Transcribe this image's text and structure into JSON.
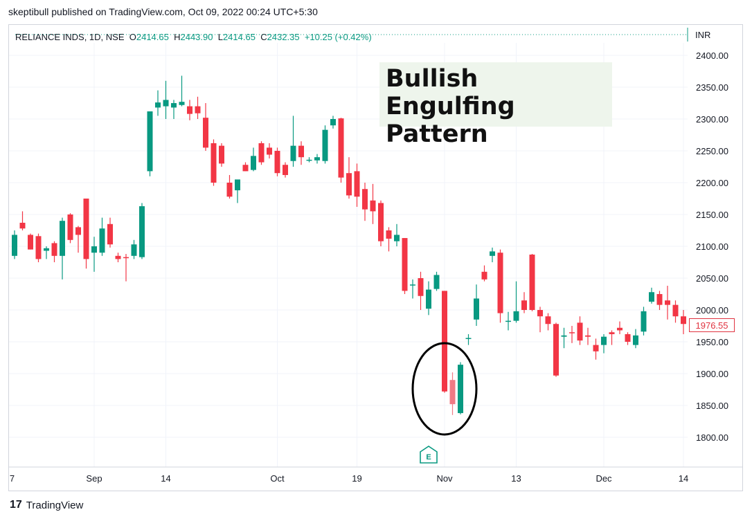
{
  "publisher": "skeptibull published on TradingView.com, Oct 09, 2022 00:24 UTC+5:30",
  "legend": {
    "symbol": "RELIANCE INDS, 1D, NSE",
    "o_label": "O",
    "o": "2414.65",
    "h_label": "H",
    "h": "2443.90",
    "l_label": "L",
    "l": "2414.65",
    "c_label": "C",
    "c": "2432.35",
    "change": "+10.25 (+0.42%)"
  },
  "currency": "INR",
  "annotation_title_line1": "Bullish Engulfing",
  "annotation_title_line2": "Pattern",
  "last_price_tag": "1976.55",
  "earnings_marker": "E",
  "brand": {
    "logo": "17",
    "name": "TradingView"
  },
  "colors": {
    "up": "#089981",
    "down": "#f23645",
    "highlight_down": "#f07a85"
  },
  "chart_data": {
    "type": "candlestick",
    "title": "RELIANCE INDS, 1D, NSE",
    "ylabel": "INR",
    "ylim": [
      1775,
      2410
    ],
    "yticks": [
      "2400.00",
      "2350.00",
      "2300.00",
      "2250.00",
      "2200.00",
      "2150.00",
      "2100.00",
      "2050.00",
      "2000.00",
      "1950.00",
      "1900.00",
      "1850.00",
      "1800.00"
    ],
    "xticks": [
      {
        "label": "7",
        "index": -0.3
      },
      {
        "label": "Sep",
        "index": 10
      },
      {
        "label": "14",
        "index": 19
      },
      {
        "label": "Oct",
        "index": 33
      },
      {
        "label": "19",
        "index": 43
      },
      {
        "label": "Nov",
        "index": 54
      },
      {
        "label": "13",
        "index": 63
      },
      {
        "label": "Dec",
        "index": 74
      },
      {
        "label": "14",
        "index": 84
      }
    ],
    "candles": [
      {
        "o": 2085,
        "h": 2125,
        "l": 2080,
        "c": 2118
      },
      {
        "o": 2137,
        "h": 2155,
        "l": 2125,
        "c": 2128
      },
      {
        "o": 2118,
        "h": 2120,
        "l": 2095,
        "c": 2095
      },
      {
        "o": 2116,
        "h": 2120,
        "l": 2075,
        "c": 2080
      },
      {
        "o": 2093,
        "h": 2100,
        "l": 2080,
        "c": 2097
      },
      {
        "o": 2105,
        "h": 2108,
        "l": 2075,
        "c": 2085
      },
      {
        "o": 2085,
        "h": 2145,
        "l": 2048,
        "c": 2140
      },
      {
        "o": 2150,
        "h": 2152,
        "l": 2105,
        "c": 2110
      },
      {
        "o": 2130,
        "h": 2132,
        "l": 2090,
        "c": 2118
      },
      {
        "o": 2175,
        "h": 2175,
        "l": 2065,
        "c": 2080
      },
      {
        "o": 2090,
        "h": 2115,
        "l": 2060,
        "c": 2100
      },
      {
        "o": 2090,
        "h": 2145,
        "l": 2085,
        "c": 2128
      },
      {
        "o": 2135,
        "h": 2145,
        "l": 2098,
        "c": 2103
      },
      {
        "o": 2085,
        "h": 2090,
        "l": 2075,
        "c": 2080
      },
      {
        "o": 2083,
        "h": 2088,
        "l": 2045,
        "c": 2082
      },
      {
        "o": 2085,
        "h": 2110,
        "l": 2080,
        "c": 2103
      },
      {
        "o": 2083,
        "h": 2168,
        "l": 2080,
        "c": 2163
      },
      {
        "o": 2218,
        "h": 2310,
        "l": 2210,
        "c": 2312
      },
      {
        "o": 2318,
        "h": 2345,
        "l": 2305,
        "c": 2326
      },
      {
        "o": 2320,
        "h": 2360,
        "l": 2300,
        "c": 2330
      },
      {
        "o": 2318,
        "h": 2330,
        "l": 2300,
        "c": 2325
      },
      {
        "o": 2322,
        "h": 2368,
        "l": 2320,
        "c": 2327
      },
      {
        "o": 2320,
        "h": 2330,
        "l": 2298,
        "c": 2308
      },
      {
        "o": 2320,
        "h": 2335,
        "l": 2300,
        "c": 2309
      },
      {
        "o": 2302,
        "h": 2325,
        "l": 2250,
        "c": 2255
      },
      {
        "o": 2262,
        "h": 2268,
        "l": 2195,
        "c": 2200
      },
      {
        "o": 2258,
        "h": 2262,
        "l": 2225,
        "c": 2230
      },
      {
        "o": 2200,
        "h": 2212,
        "l": 2175,
        "c": 2178
      },
      {
        "o": 2188,
        "h": 2200,
        "l": 2168,
        "c": 2205
      },
      {
        "o": 2228,
        "h": 2232,
        "l": 2218,
        "c": 2218
      },
      {
        "o": 2220,
        "h": 2255,
        "l": 2218,
        "c": 2242
      },
      {
        "o": 2262,
        "h": 2265,
        "l": 2228,
        "c": 2232
      },
      {
        "o": 2255,
        "h": 2262,
        "l": 2238,
        "c": 2244
      },
      {
        "o": 2250,
        "h": 2255,
        "l": 2210,
        "c": 2215
      },
      {
        "o": 2228,
        "h": 2232,
        "l": 2208,
        "c": 2212
      },
      {
        "o": 2234,
        "h": 2305,
        "l": 2225,
        "c": 2258
      },
      {
        "o": 2258,
        "h": 2265,
        "l": 2228,
        "c": 2240
      },
      {
        "o": 2236,
        "h": 2240,
        "l": 2232,
        "c": 2236
      },
      {
        "o": 2235,
        "h": 2245,
        "l": 2230,
        "c": 2240
      },
      {
        "o": 2234,
        "h": 2290,
        "l": 2230,
        "c": 2283
      },
      {
        "o": 2290,
        "h": 2305,
        "l": 2285,
        "c": 2300
      },
      {
        "o": 2301,
        "h": 2302,
        "l": 2200,
        "c": 2208
      },
      {
        "o": 2215,
        "h": 2240,
        "l": 2175,
        "c": 2180
      },
      {
        "o": 2218,
        "h": 2230,
        "l": 2162,
        "c": 2178
      },
      {
        "o": 2190,
        "h": 2200,
        "l": 2140,
        "c": 2158
      },
      {
        "o": 2172,
        "h": 2198,
        "l": 2135,
        "c": 2155
      },
      {
        "o": 2168,
        "h": 2172,
        "l": 2100,
        "c": 2108
      },
      {
        "o": 2125,
        "h": 2130,
        "l": 2092,
        "c": 2112
      },
      {
        "o": 2108,
        "h": 2135,
        "l": 2100,
        "c": 2118
      },
      {
        "o": 2113,
        "h": 2113,
        "l": 2025,
        "c": 2030
      },
      {
        "o": 2040,
        "h": 2048,
        "l": 2018,
        "c": 2040
      },
      {
        "o": 2050,
        "h": 2060,
        "l": 2000,
        "c": 2022
      },
      {
        "o": 2002,
        "h": 2045,
        "l": 1992,
        "c": 2032
      },
      {
        "o": 2033,
        "h": 2060,
        "l": 2030,
        "c": 2055
      },
      {
        "o": 2030,
        "h": 2030,
        "l": 1870,
        "c": 1872
      },
      {
        "o": 1890,
        "h": 1902,
        "l": 1835,
        "c": 1852
      },
      {
        "o": 1838,
        "h": 1918,
        "l": 1836,
        "c": 1914
      },
      {
        "o": 1955,
        "h": 1962,
        "l": 1945,
        "c": 1956
      },
      {
        "o": 1985,
        "h": 2040,
        "l": 1975,
        "c": 2018
      },
      {
        "o": 2060,
        "h": 2070,
        "l": 2045,
        "c": 2048
      },
      {
        "o": 2085,
        "h": 2098,
        "l": 2075,
        "c": 2092
      },
      {
        "o": 2090,
        "h": 2095,
        "l": 1980,
        "c": 1995
      },
      {
        "o": 1983,
        "h": 1997,
        "l": 1968,
        "c": 1983
      },
      {
        "o": 1983,
        "h": 2045,
        "l": 1980,
        "c": 1998
      },
      {
        "o": 2015,
        "h": 2028,
        "l": 1995,
        "c": 2000
      },
      {
        "o": 2087,
        "h": 2088,
        "l": 1998,
        "c": 2000
      },
      {
        "o": 2000,
        "h": 2005,
        "l": 1965,
        "c": 1990
      },
      {
        "o": 1990,
        "h": 1995,
        "l": 1968,
        "c": 1978
      },
      {
        "o": 1978,
        "h": 1980,
        "l": 1895,
        "c": 1897
      },
      {
        "o": 1958,
        "h": 1972,
        "l": 1940,
        "c": 1960
      },
      {
        "o": 1965,
        "h": 1975,
        "l": 1948,
        "c": 1964
      },
      {
        "o": 1980,
        "h": 1990,
        "l": 1945,
        "c": 1952
      },
      {
        "o": 1960,
        "h": 1972,
        "l": 1945,
        "c": 1958
      },
      {
        "o": 1945,
        "h": 1955,
        "l": 1922,
        "c": 1935
      },
      {
        "o": 1945,
        "h": 1962,
        "l": 1932,
        "c": 1958
      },
      {
        "o": 1965,
        "h": 1968,
        "l": 1945,
        "c": 1962
      },
      {
        "o": 1972,
        "h": 1982,
        "l": 1962,
        "c": 1968
      },
      {
        "o": 1962,
        "h": 1965,
        "l": 1945,
        "c": 1950
      },
      {
        "o": 1945,
        "h": 1970,
        "l": 1940,
        "c": 1960
      },
      {
        "o": 1966,
        "h": 2005,
        "l": 1960,
        "c": 1998
      },
      {
        "o": 2013,
        "h": 2035,
        "l": 2010,
        "c": 2028
      },
      {
        "o": 2025,
        "h": 2030,
        "l": 2000,
        "c": 2008
      },
      {
        "o": 2015,
        "h": 2038,
        "l": 1985,
        "c": 2008
      },
      {
        "o": 2008,
        "h": 2015,
        "l": 1980,
        "c": 1990
      },
      {
        "o": 1990,
        "h": 2000,
        "l": 1962,
        "c": 1978
      },
      {
        "o": 1988,
        "h": 1998,
        "l": 1965,
        "c": 1976.55
      }
    ],
    "highlight": {
      "indices": [
        54,
        55,
        56
      ],
      "shape": "ellipse"
    }
  }
}
